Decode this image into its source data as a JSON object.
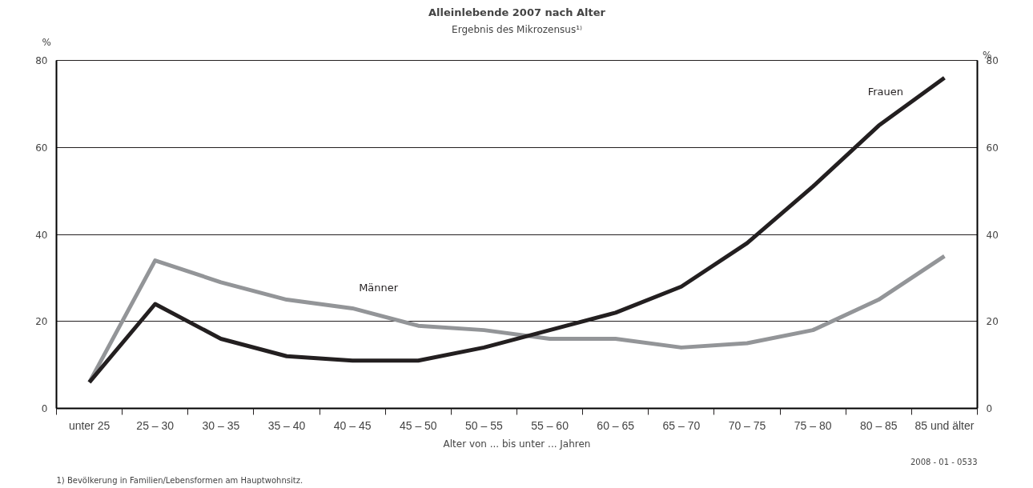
{
  "chart_data": {
    "type": "line",
    "title": "Alleinlebende 2007 nach Alter",
    "subtitle": "Ergebnis des Mikrozensus¹⁾",
    "xlabel": "Alter von ... bis unter ... Jahren",
    "ylabel": "%",
    "y2label": "%",
    "categories": [
      "unter 25",
      "25 – 30",
      "30 – 35",
      "35 – 40",
      "40 – 45",
      "45 – 50",
      "50 – 55",
      "55 – 60",
      "60 – 65",
      "65 – 70",
      "70 – 75",
      "75 – 80",
      "80 – 85",
      "85 und älter"
    ],
    "series": [
      {
        "name": "Männer",
        "color": "#939598",
        "values": [
          6,
          34,
          29,
          25,
          23,
          19,
          18,
          16,
          16,
          14,
          15,
          18,
          25,
          35
        ]
      },
      {
        "name": "Frauen",
        "color": "#231f20",
        "values": [
          6,
          24,
          16,
          12,
          11,
          11,
          14,
          18,
          22,
          28,
          38,
          51,
          65,
          76
        ]
      }
    ],
    "ylim": [
      0,
      80
    ],
    "yticks": [
      0,
      20,
      40,
      60,
      80
    ],
    "y2lim": [
      0,
      80
    ],
    "y2ticks": [
      0,
      20,
      40,
      60,
      80
    ],
    "grid": "y",
    "legend": false,
    "marker": "none",
    "line_style": "solid",
    "annotations": [
      "1) Bevölkerung in Familien/Lebensformen am Hauptwohnsitz.",
      "2008 - 01 - 0533"
    ]
  }
}
